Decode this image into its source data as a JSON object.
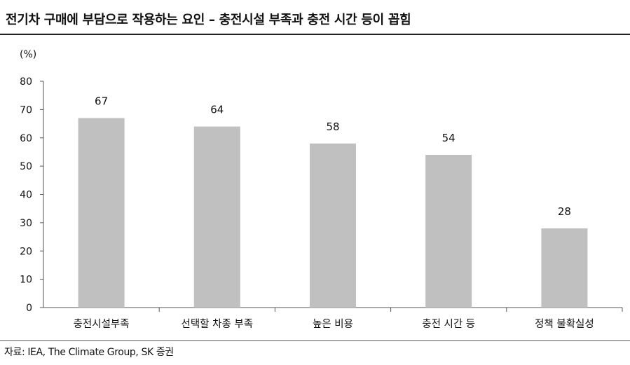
{
  "header": {
    "title": "전기차 구매에 부담으로 작용하는 요인 – 충전시설 부족과 충전 시간 등이 꼽힘"
  },
  "source": "자료: IEA, The Climate Group, SK 증권",
  "chart_data": {
    "type": "bar",
    "unit": "(%)",
    "categories": [
      "충전시설부족",
      "선택할 차종 부족",
      "높은 비용",
      "충전 시간 등",
      "정책 불확실성"
    ],
    "values": [
      67,
      64,
      58,
      54,
      28
    ],
    "ylim": [
      0,
      80
    ],
    "yticks": [
      0,
      10,
      20,
      30,
      40,
      50,
      60,
      70,
      80
    ],
    "grid": false,
    "bar_color": "#c0c0c0",
    "data_labels": true
  }
}
